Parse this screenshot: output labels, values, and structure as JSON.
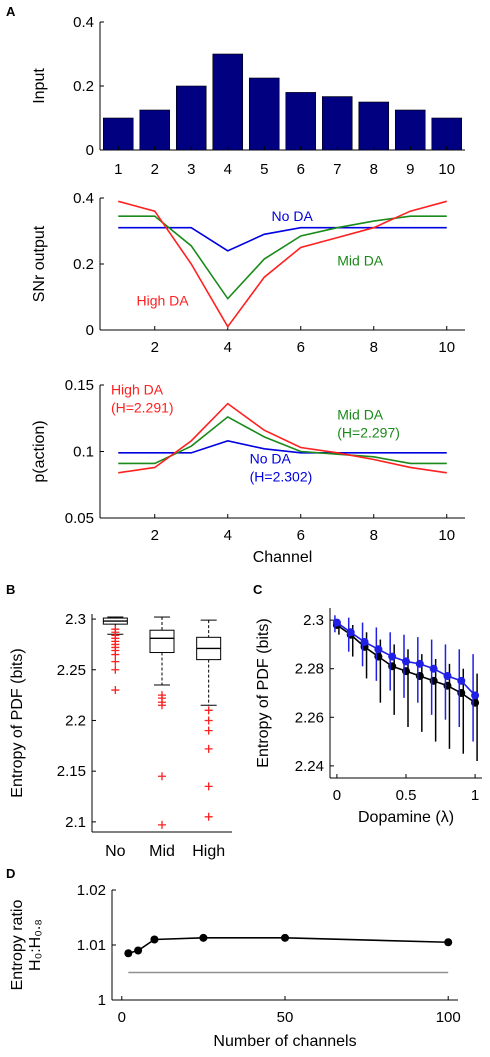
{
  "chart_data": [
    {
      "panel": "A",
      "type": "bar",
      "ylabel": "Input",
      "ylim": [
        0,
        0.4
      ],
      "yticks": [
        0,
        0.2,
        0.4
      ],
      "categories": [
        "1",
        "2",
        "3",
        "4",
        "5",
        "6",
        "7",
        "8",
        "9",
        "10"
      ],
      "values": [
        0.1,
        0.125,
        0.2,
        0.3,
        0.225,
        0.18,
        0.167,
        0.15,
        0.125,
        0.1
      ],
      "color": "#000080"
    },
    {
      "panel": "A2",
      "type": "line",
      "ylabel": "SNr output",
      "ylim": [
        0,
        0.4
      ],
      "yticks": [
        0,
        0.2,
        0.4
      ],
      "xlim": [
        0.5,
        10.5
      ],
      "xticks": [
        2,
        4,
        6,
        8,
        10
      ],
      "x": [
        1,
        2,
        3,
        4,
        5,
        6,
        7,
        8,
        9,
        10
      ],
      "series": [
        {
          "name": "No DA",
          "color": "#0000e0",
          "values": [
            0.31,
            0.31,
            0.31,
            0.24,
            0.29,
            0.31,
            0.31,
            0.31,
            0.31,
            0.31
          ]
        },
        {
          "name": "Mid DA",
          "color": "#1a8a1a",
          "values": [
            0.345,
            0.345,
            0.255,
            0.095,
            0.215,
            0.285,
            0.31,
            0.33,
            0.345,
            0.345
          ]
        },
        {
          "name": "High DA",
          "color": "#ff2020",
          "values": [
            0.39,
            0.36,
            0.2,
            0.01,
            0.16,
            0.25,
            0.28,
            0.31,
            0.36,
            0.39
          ]
        }
      ],
      "annotations": [
        {
          "text": "No DA",
          "x": 5.2,
          "y": 0.33,
          "color": "#0000e0"
        },
        {
          "text": "Mid DA",
          "x": 7.0,
          "y": 0.195,
          "color": "#1a8a1a"
        },
        {
          "text": "High DA",
          "x": 1.5,
          "y": 0.075,
          "color": "#ff2020"
        }
      ]
    },
    {
      "panel": "A3",
      "type": "line",
      "ylabel": "p(action)",
      "xlabel": "Channel",
      "ylim": [
        0.05,
        0.15
      ],
      "yticks": [
        0.05,
        0.1,
        0.15
      ],
      "xlim": [
        0.5,
        10.5
      ],
      "xticks": [
        2,
        4,
        6,
        8,
        10
      ],
      "x": [
        1,
        2,
        3,
        4,
        5,
        6,
        7,
        8,
        9,
        10
      ],
      "series": [
        {
          "name": "No DA",
          "color": "#0000e0",
          "values": [
            0.099,
            0.099,
            0.099,
            0.108,
            0.102,
            0.099,
            0.099,
            0.099,
            0.099,
            0.099
          ]
        },
        {
          "name": "Mid DA",
          "color": "#1a8a1a",
          "values": [
            0.091,
            0.091,
            0.104,
            0.126,
            0.111,
            0.1,
            0.098,
            0.096,
            0.091,
            0.091
          ]
        },
        {
          "name": "High DA",
          "color": "#ff2020",
          "values": [
            0.084,
            0.088,
            0.108,
            0.136,
            0.116,
            0.103,
            0.099,
            0.094,
            0.088,
            0.084
          ]
        }
      ],
      "annotations": [
        {
          "lines": [
            "High DA",
            "(H=2.291)"
          ],
          "x": 0.8,
          "y": 0.143,
          "color": "#ff2020"
        },
        {
          "lines": [
            "Mid DA",
            "(H=2.297)"
          ],
          "x": 7.0,
          "y": 0.124,
          "color": "#1a8a1a"
        },
        {
          "lines": [
            "No DA",
            "(H=2.302)"
          ],
          "x": 4.6,
          "y": 0.091,
          "color": "#0000e0"
        }
      ]
    },
    {
      "panel": "B",
      "type": "box",
      "ylabel": "Entropy of PDF (bits)",
      "ylim": [
        2.09,
        2.305
      ],
      "yticks": [
        2.1,
        2.15,
        2.2,
        2.25,
        2.3
      ],
      "categories": [
        "No",
        "Mid",
        "High"
      ],
      "boxes": [
        {
          "q1": 2.295,
          "median": 2.298,
          "q3": 2.301,
          "whisker_low": 2.285,
          "whisker_high": 2.302,
          "outliers": [
            2.29,
            2.287,
            2.284,
            2.281,
            2.278,
            2.275,
            2.272,
            2.269,
            2.265,
            2.258,
            2.25,
            2.23
          ]
        },
        {
          "q1": 2.267,
          "median": 2.281,
          "q3": 2.289,
          "whisker_low": 2.235,
          "whisker_high": 2.302,
          "outliers": [
            2.225,
            2.222,
            2.218,
            2.215,
            2.145,
            2.097
          ]
        },
        {
          "q1": 2.26,
          "median": 2.271,
          "q3": 2.282,
          "whisker_low": 2.215,
          "whisker_high": 2.299,
          "outliers": [
            2.21,
            2.2,
            2.19,
            2.172,
            2.135,
            2.105
          ]
        }
      ],
      "outlier_color": "#ff2020"
    },
    {
      "panel": "C",
      "type": "line",
      "ylabel": "Entropy of PDF (bits)",
      "xlabel": "Dopamine (λ)",
      "xlim": [
        -0.05,
        1.05
      ],
      "ylim": [
        2.235,
        2.305
      ],
      "xticks": [
        0,
        0.5,
        1
      ],
      "yticks": [
        2.24,
        2.26,
        2.28,
        2.3
      ],
      "x": [
        0,
        0.1,
        0.2,
        0.3,
        0.4,
        0.5,
        0.6,
        0.7,
        0.8,
        0.9,
        1.0
      ],
      "series": [
        {
          "color": "#000000",
          "values": [
            2.298,
            2.294,
            2.289,
            2.285,
            2.281,
            2.279,
            2.277,
            2.275,
            2.273,
            2.27,
            2.266
          ],
          "err_low": [
            2.294,
            2.285,
            2.276,
            2.266,
            2.261,
            2.256,
            2.254,
            2.25,
            2.247,
            2.245,
            2.242
          ],
          "err_high": [
            2.3,
            2.298,
            2.295,
            2.292,
            2.29,
            2.288,
            2.286,
            2.284,
            2.282,
            2.28,
            2.278
          ]
        },
        {
          "color": "#1f1fe6",
          "values": [
            2.299,
            2.295,
            2.291,
            2.288,
            2.285,
            2.283,
            2.282,
            2.28,
            2.277,
            2.275,
            2.269
          ],
          "err_low": [
            2.295,
            2.287,
            2.281,
            2.275,
            2.271,
            2.268,
            2.266,
            2.261,
            2.259,
            2.256,
            2.25
          ],
          "err_high": [
            2.302,
            2.301,
            2.299,
            2.297,
            2.295,
            2.294,
            2.293,
            2.292,
            2.29,
            2.288,
            2.286
          ]
        }
      ]
    },
    {
      "panel": "D",
      "type": "line",
      "ylabel_lines": [
        "Entropy ratio",
        "H₀:H₀.₈"
      ],
      "xlabel": "Number of channels",
      "xlim": [
        -3,
        103
      ],
      "ylim": [
        1.0,
        1.02
      ],
      "xticks": [
        0,
        50,
        100
      ],
      "yticks": [
        1,
        1.01,
        1.02
      ],
      "x": [
        2,
        5,
        10,
        25,
        50,
        100
      ],
      "series": [
        {
          "color": "#000000",
          "values": [
            1.0085,
            1.009,
            1.011,
            1.0113,
            1.0113,
            1.0105
          ]
        }
      ],
      "reference_line": {
        "y": 1.005,
        "color": "#909090"
      }
    }
  ],
  "panel_labels": [
    "A",
    "B",
    "C",
    "D"
  ]
}
